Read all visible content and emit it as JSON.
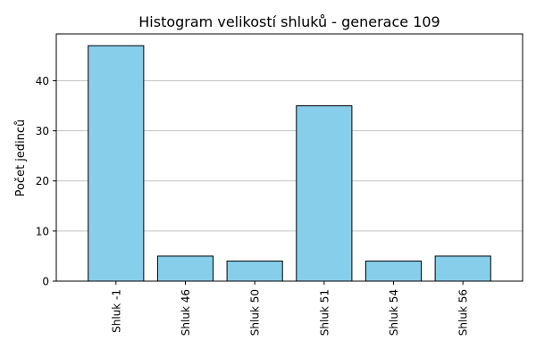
{
  "chart_data": {
    "type": "bar",
    "title": "Histogram velikostí shluků - generace 109",
    "xlabel": "",
    "ylabel": "Počet jedinců",
    "categories": [
      "Shluk -1",
      "Shluk 46",
      "Shluk 50",
      "Shluk 51",
      "Shluk 54",
      "Shluk 56"
    ],
    "values": [
      47,
      5,
      4,
      35,
      4,
      5
    ],
    "ylim": [
      0,
      49.35
    ],
    "yticks": [
      0,
      10,
      20,
      30,
      40
    ],
    "grid": "y",
    "bar_color": "#87ceeb",
    "bar_edge_color": "#000000",
    "grid_color": "#b0b0b0"
  }
}
